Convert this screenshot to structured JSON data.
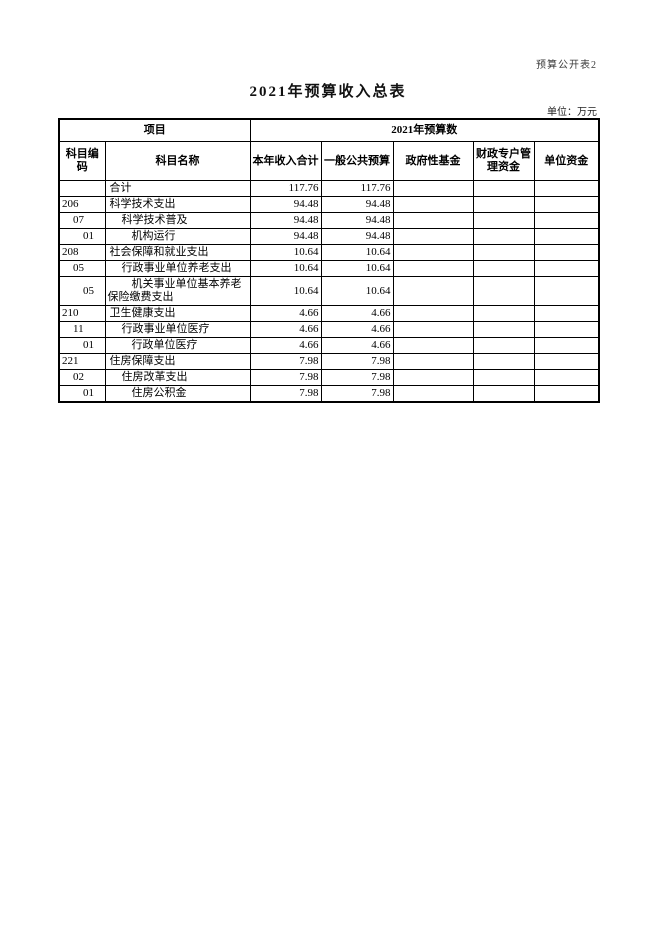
{
  "page": {
    "corner_label": "预算公开表2",
    "title": "2021年预算收入总表",
    "unit_label": "单位：万元"
  },
  "table": {
    "header": {
      "group_item": "项目",
      "group_budget": "2021年预算数",
      "col_code": "科目编码",
      "col_name": "科目名称",
      "col_total": "本年收入合计",
      "col_general": "一般公共预算",
      "col_gov_fund": "政府性基金",
      "col_fiscal": "财政专户管理资金",
      "col_unit": "单位资金"
    },
    "rows": [
      {
        "code": "",
        "name": "合计",
        "level": 0,
        "total": "117.76",
        "general": "117.76",
        "gov_fund": "",
        "fiscal": "",
        "unit": ""
      },
      {
        "code": "206",
        "name": "科学技术支出",
        "level": 0,
        "total": "94.48",
        "general": "94.48",
        "gov_fund": "",
        "fiscal": "",
        "unit": ""
      },
      {
        "code": "07",
        "name": "科学技术普及",
        "level": 1,
        "total": "94.48",
        "general": "94.48",
        "gov_fund": "",
        "fiscal": "",
        "unit": ""
      },
      {
        "code": "01",
        "name": "机构运行",
        "level": 2,
        "total": "94.48",
        "general": "94.48",
        "gov_fund": "",
        "fiscal": "",
        "unit": ""
      },
      {
        "code": "208",
        "name": "社会保障和就业支出",
        "level": 0,
        "total": "10.64",
        "general": "10.64",
        "gov_fund": "",
        "fiscal": "",
        "unit": ""
      },
      {
        "code": "05",
        "name": "行政事业单位养老支出",
        "level": 1,
        "total": "10.64",
        "general": "10.64",
        "gov_fund": "",
        "fiscal": "",
        "unit": ""
      },
      {
        "code": "05",
        "name": "机关事业单位基本养老保险缴费支出",
        "level": 2,
        "total": "10.64",
        "general": "10.64",
        "gov_fund": "",
        "fiscal": "",
        "unit": ""
      },
      {
        "code": "210",
        "name": "卫生健康支出",
        "level": 0,
        "total": "4.66",
        "general": "4.66",
        "gov_fund": "",
        "fiscal": "",
        "unit": ""
      },
      {
        "code": "11",
        "name": "行政事业单位医疗",
        "level": 1,
        "total": "4.66",
        "general": "4.66",
        "gov_fund": "",
        "fiscal": "",
        "unit": ""
      },
      {
        "code": "01",
        "name": "行政单位医疗",
        "level": 2,
        "total": "4.66",
        "general": "4.66",
        "gov_fund": "",
        "fiscal": "",
        "unit": ""
      },
      {
        "code": "221",
        "name": "住房保障支出",
        "level": 0,
        "total": "7.98",
        "general": "7.98",
        "gov_fund": "",
        "fiscal": "",
        "unit": ""
      },
      {
        "code": "02",
        "name": "住房改革支出",
        "level": 1,
        "total": "7.98",
        "general": "7.98",
        "gov_fund": "",
        "fiscal": "",
        "unit": ""
      },
      {
        "code": "01",
        "name": "住房公积金",
        "level": 2,
        "total": "7.98",
        "general": "7.98",
        "gov_fund": "",
        "fiscal": "",
        "unit": ""
      }
    ]
  }
}
